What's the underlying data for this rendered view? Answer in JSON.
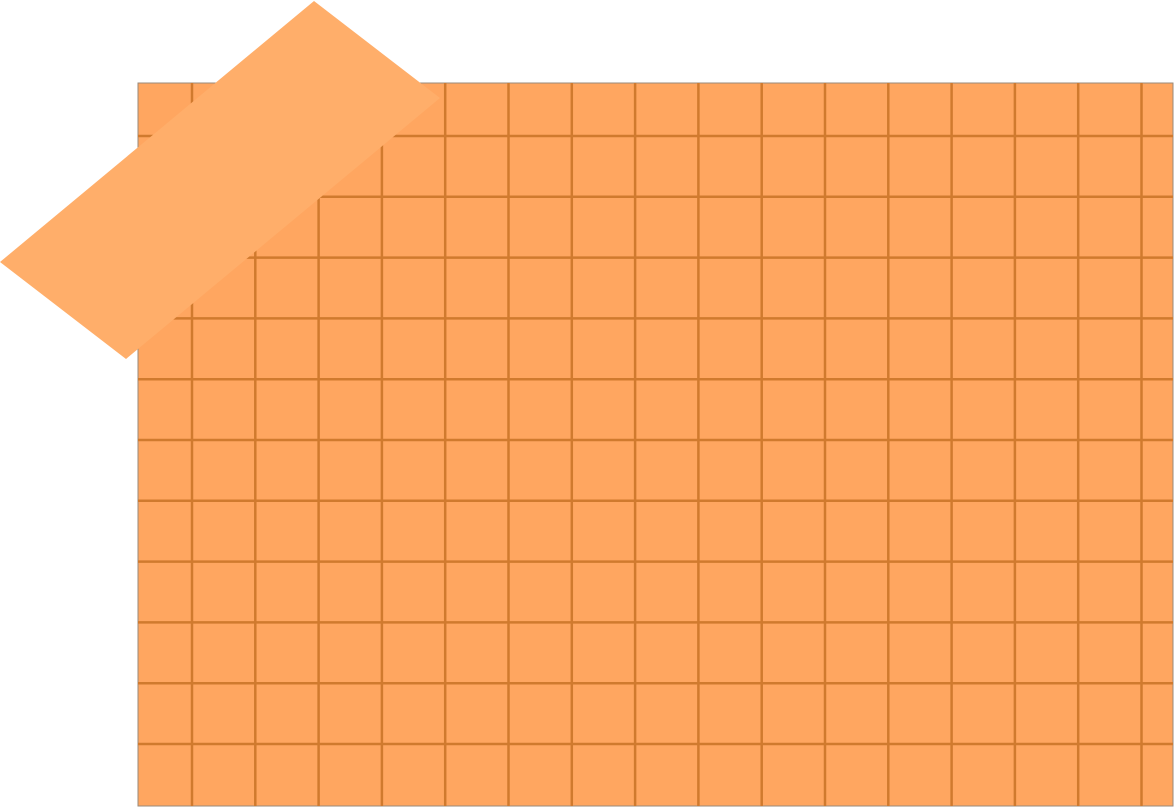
{
  "colors": {
    "background": "#ffffff",
    "grid_paper_fill": "#ffa660",
    "grid_paper_border": "#9a8a7a",
    "grid_line": "#d07a2e",
    "tape_fill": "#ffae6a"
  },
  "grid_paper": {
    "columns": 16,
    "rows": 12
  },
  "tape_strip": {
    "description_visible": false
  }
}
